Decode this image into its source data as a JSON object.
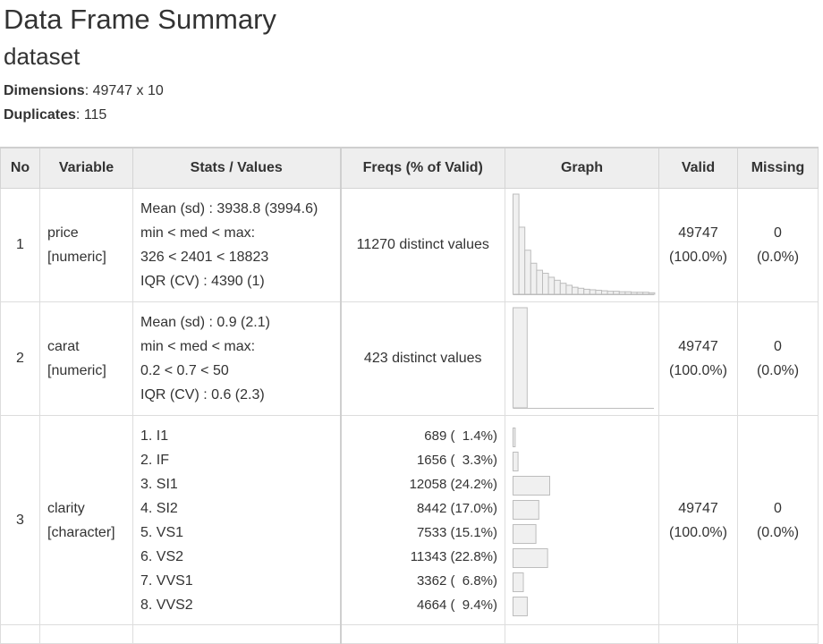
{
  "header": {
    "title": "Data Frame Summary",
    "subtitle": "dataset",
    "dimensions_label": "Dimensions",
    "dimensions_value": ": 49747 x 10",
    "duplicates_label": "Duplicates",
    "duplicates_value": ": 115"
  },
  "table": {
    "columns": [
      "No",
      "Variable",
      "Stats / Values",
      "Freqs (% of Valid)",
      "Graph",
      "Valid",
      "Missing"
    ],
    "rows": [
      {
        "no": "1",
        "variable": "price",
        "type": "[numeric]",
        "stats": [
          "Mean (sd) : 3938.8 (3994.6)",
          "min < med < max:",
          "326 < 2401 < 18823",
          "IQR (CV) : 4390 (1)"
        ],
        "freqs": "11270 distinct values",
        "valid_n": "49747",
        "valid_pct": "(100.0%)",
        "missing_n": "0",
        "missing_pct": "(0.0%)",
        "histogram": [
          1.0,
          0.67,
          0.44,
          0.31,
          0.24,
          0.21,
          0.17,
          0.14,
          0.11,
          0.09,
          0.07,
          0.06,
          0.05,
          0.045,
          0.04,
          0.035,
          0.03,
          0.03,
          0.025,
          0.025,
          0.02,
          0.02,
          0.02,
          0.015
        ]
      },
      {
        "no": "2",
        "variable": "carat",
        "type": "[numeric]",
        "stats": [
          "Mean (sd) : 0.9 (2.1)",
          "min < med < max:",
          "0.2 < 0.7 < 50",
          "IQR (CV) : 0.6 (2.3)"
        ],
        "freqs": "423 distinct values",
        "valid_n": "49747",
        "valid_pct": "(100.0%)",
        "missing_n": "0",
        "missing_pct": "(0.0%)",
        "histogram": [
          1.0,
          0,
          0,
          0,
          0,
          0,
          0,
          0,
          0,
          0
        ]
      },
      {
        "no": "3",
        "variable": "clarity",
        "type": "[character]",
        "values": [
          "1. I1",
          "2. IF",
          "3. SI1",
          "4. SI2",
          "5. VS1",
          "6. VS2",
          "7. VVS1",
          "8. VVS2"
        ],
        "freq_lines": [
          "689 (  1.4%)",
          "1656 (  3.3%)",
          "12058 (24.2%)",
          "8442 (17.0%)",
          "7533 (15.1%)",
          "11343 (22.8%)",
          "3362 (  6.8%)",
          "4664 (  9.4%)"
        ],
        "freq_pcts": [
          1.4,
          3.3,
          24.2,
          17.0,
          15.1,
          22.8,
          6.8,
          9.4
        ],
        "valid_n": "49747",
        "valid_pct": "(100.0%)",
        "missing_n": "0",
        "missing_pct": "(0.0%)"
      }
    ]
  }
}
